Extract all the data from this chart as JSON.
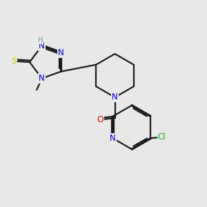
{
  "background_color": "#e8e8e8",
  "figure_size": [
    3.0,
    3.0
  ],
  "dpi": 100,
  "bond_color": "#1a1a1a",
  "bond_lw": 1.6,
  "label_colors": {
    "N": "#0000cc",
    "S": "#cccc00",
    "O": "#ee0000",
    "Cl": "#00aa00",
    "H": "#6699aa",
    "C": "#1a1a1a"
  },
  "font_size": 8.5,
  "bg": "#e8e8e8"
}
